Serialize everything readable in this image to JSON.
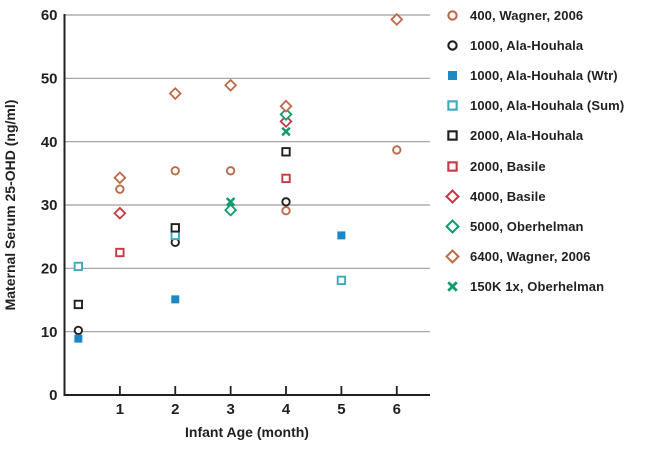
{
  "chart_data": {
    "type": "scatter",
    "title": "",
    "xlabel": "Infant Age (month)",
    "ylabel": "Maternal Serum 25-OHD (ng/ml)",
    "xlim": [
      0,
      6.6
    ],
    "ylim": [
      0,
      60
    ],
    "xticks": [
      1,
      2,
      3,
      4,
      5,
      6
    ],
    "yticks": [
      0,
      10,
      20,
      30,
      40,
      50,
      60
    ],
    "grid": "horizontal gridlines at each y tick",
    "legend_position": "right",
    "colors": {
      "axis": "#231f20",
      "grid": "#9b9da0",
      "orange": "#bb6b4a",
      "black": "#231f20",
      "blue": "#1b87c3",
      "cyan": "#3ea9bf",
      "red": "#c33a44",
      "green": "#129b6e"
    },
    "series": [
      {
        "name": "400, Wagner, 2006",
        "marker": "circle-open",
        "color": "#bb6b4a",
        "points": [
          [
            1,
            32.5
          ],
          [
            2,
            35.4
          ],
          [
            3,
            35.4
          ],
          [
            4,
            29.1
          ],
          [
            6,
            38.7
          ]
        ]
      },
      {
        "name": "1000, Ala-Houhala",
        "marker": "circle-open",
        "color": "#231f20",
        "points": [
          [
            0.25,
            10.2
          ],
          [
            2,
            24.1
          ],
          [
            4,
            30.5
          ]
        ]
      },
      {
        "name": "1000, Ala-Houhala (Wtr)",
        "marker": "square-filled",
        "color": "#1b87c3",
        "points": [
          [
            0.25,
            8.9
          ],
          [
            2,
            15.1
          ],
          [
            5,
            25.2
          ]
        ]
      },
      {
        "name": "1000, Ala-Houhala (Sum)",
        "marker": "square-open",
        "color": "#3ea9bf",
        "points": [
          [
            0.25,
            20.3
          ],
          [
            2,
            25.2
          ],
          [
            5,
            18.1
          ]
        ]
      },
      {
        "name": "2000, Ala-Houhala",
        "marker": "square-open",
        "color": "#231f20",
        "points": [
          [
            0.25,
            14.3
          ],
          [
            2,
            26.4
          ],
          [
            4,
            38.4
          ]
        ]
      },
      {
        "name": "2000, Basile",
        "marker": "square-open",
        "color": "#c33a44",
        "points": [
          [
            1,
            22.5
          ],
          [
            4,
            34.2
          ]
        ]
      },
      {
        "name": "4000, Basile",
        "marker": "diamond-open",
        "color": "#c33a44",
        "points": [
          [
            1,
            28.7
          ],
          [
            4,
            43.2
          ]
        ]
      },
      {
        "name": "5000, Oberhelman",
        "marker": "diamond-open",
        "color": "#129b6e",
        "points": [
          [
            3,
            29.2
          ],
          [
            4,
            44.3
          ]
        ]
      },
      {
        "name": "6400, Wagner, 2006",
        "marker": "diamond-open",
        "color": "#bb6b4a",
        "points": [
          [
            1,
            34.3
          ],
          [
            2,
            47.6
          ],
          [
            3,
            48.9
          ],
          [
            4,
            45.6
          ],
          [
            6,
            59.3
          ]
        ]
      },
      {
        "name": "150K 1x, Oberhelman",
        "marker": "x",
        "color": "#129b6e",
        "points": [
          [
            3,
            30.5
          ],
          [
            4,
            41.6
          ]
        ]
      }
    ]
  }
}
